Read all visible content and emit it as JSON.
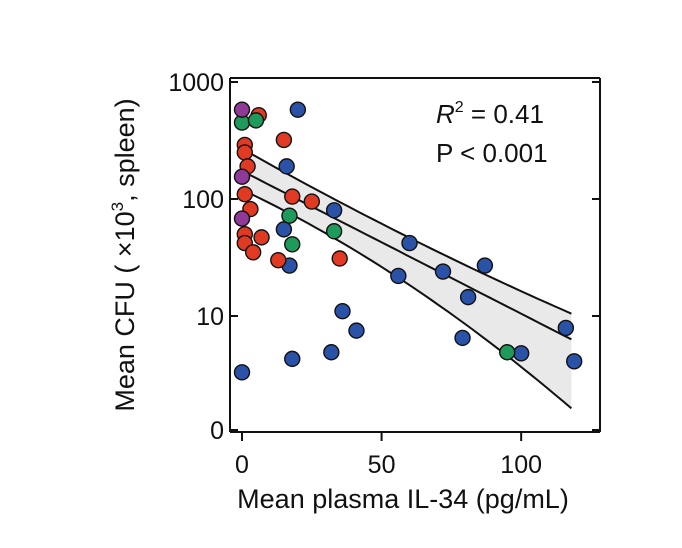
{
  "chart_data": {
    "type": "scatter",
    "title": "",
    "xlabel": "Mean plasma IL-34 (pg/mL)",
    "ylabel_prefix": "Mean CFU ( ×10",
    "ylabel_exponent": "3",
    "ylabel_suffix": ", spleen)",
    "xlim": [
      0,
      120
    ],
    "yscale": "log",
    "ylim_display": [
      0,
      1000
    ],
    "x_ticks": [
      0,
      50,
      100
    ],
    "y_ticks": [
      {
        "value": 1000,
        "label": "1000"
      },
      {
        "value": 100,
        "label": "100"
      },
      {
        "value": 10,
        "label": "10"
      },
      {
        "value": 0,
        "label": "0"
      }
    ],
    "annotation": {
      "r2_symbol": "R",
      "r2_exponent": "2",
      "r2_value": " = 0.41",
      "p_text": "P < 0.001"
    },
    "colors": {
      "blue": "#2a52a6",
      "red": "#e03a22",
      "green": "#1e9a5a",
      "purple": "#8e3a96",
      "band": "#e9e9e9",
      "line": "#111111"
    },
    "fit": {
      "x_range": [
        0,
        118
      ],
      "center_log10": [
        2.24,
        0.8
      ],
      "upper_log10": [
        2.43,
        1.02
      ],
      "lower_log10": [
        2.08,
        0.21
      ],
      "bend_log10_offset": 0.3
    },
    "series": [
      {
        "name": "blue",
        "points": [
          {
            "x": 0,
            "y": 3.3
          },
          {
            "x": 20,
            "y": 580
          },
          {
            "x": 16,
            "y": 190
          },
          {
            "x": 33,
            "y": 80
          },
          {
            "x": 15,
            "y": 55
          },
          {
            "x": 17,
            "y": 27
          },
          {
            "x": 36,
            "y": 11
          },
          {
            "x": 41,
            "y": 7.5
          },
          {
            "x": 18,
            "y": 4.3
          },
          {
            "x": 32,
            "y": 4.9
          },
          {
            "x": 60,
            "y": 42
          },
          {
            "x": 56,
            "y": 22
          },
          {
            "x": 72,
            "y": 24
          },
          {
            "x": 87,
            "y": 27
          },
          {
            "x": 81,
            "y": 14.5
          },
          {
            "x": 79,
            "y": 6.5
          },
          {
            "x": 100,
            "y": 4.8
          },
          {
            "x": 116,
            "y": 7.9
          },
          {
            "x": 119,
            "y": 4.1
          }
        ]
      },
      {
        "name": "red",
        "points": [
          {
            "x": 6,
            "y": 520
          },
          {
            "x": 15,
            "y": 320
          },
          {
            "x": 1,
            "y": 290
          },
          {
            "x": 1,
            "y": 250
          },
          {
            "x": 2,
            "y": 190
          },
          {
            "x": 1,
            "y": 110
          },
          {
            "x": 18,
            "y": 105
          },
          {
            "x": 25,
            "y": 95
          },
          {
            "x": 3,
            "y": 82
          },
          {
            "x": 1,
            "y": 50
          },
          {
            "x": 7,
            "y": 47
          },
          {
            "x": 1,
            "y": 42
          },
          {
            "x": 4,
            "y": 35
          },
          {
            "x": 13,
            "y": 30
          },
          {
            "x": 35,
            "y": 31
          }
        ]
      },
      {
        "name": "green",
        "points": [
          {
            "x": 0,
            "y": 450
          },
          {
            "x": 5,
            "y": 470
          },
          {
            "x": 17,
            "y": 72
          },
          {
            "x": 33,
            "y": 53
          },
          {
            "x": 18,
            "y": 41
          },
          {
            "x": 95,
            "y": 4.9
          }
        ]
      },
      {
        "name": "purple",
        "points": [
          {
            "x": 0,
            "y": 580
          },
          {
            "x": 0,
            "y": 155
          },
          {
            "x": 0,
            "y": 68
          }
        ]
      }
    ]
  }
}
